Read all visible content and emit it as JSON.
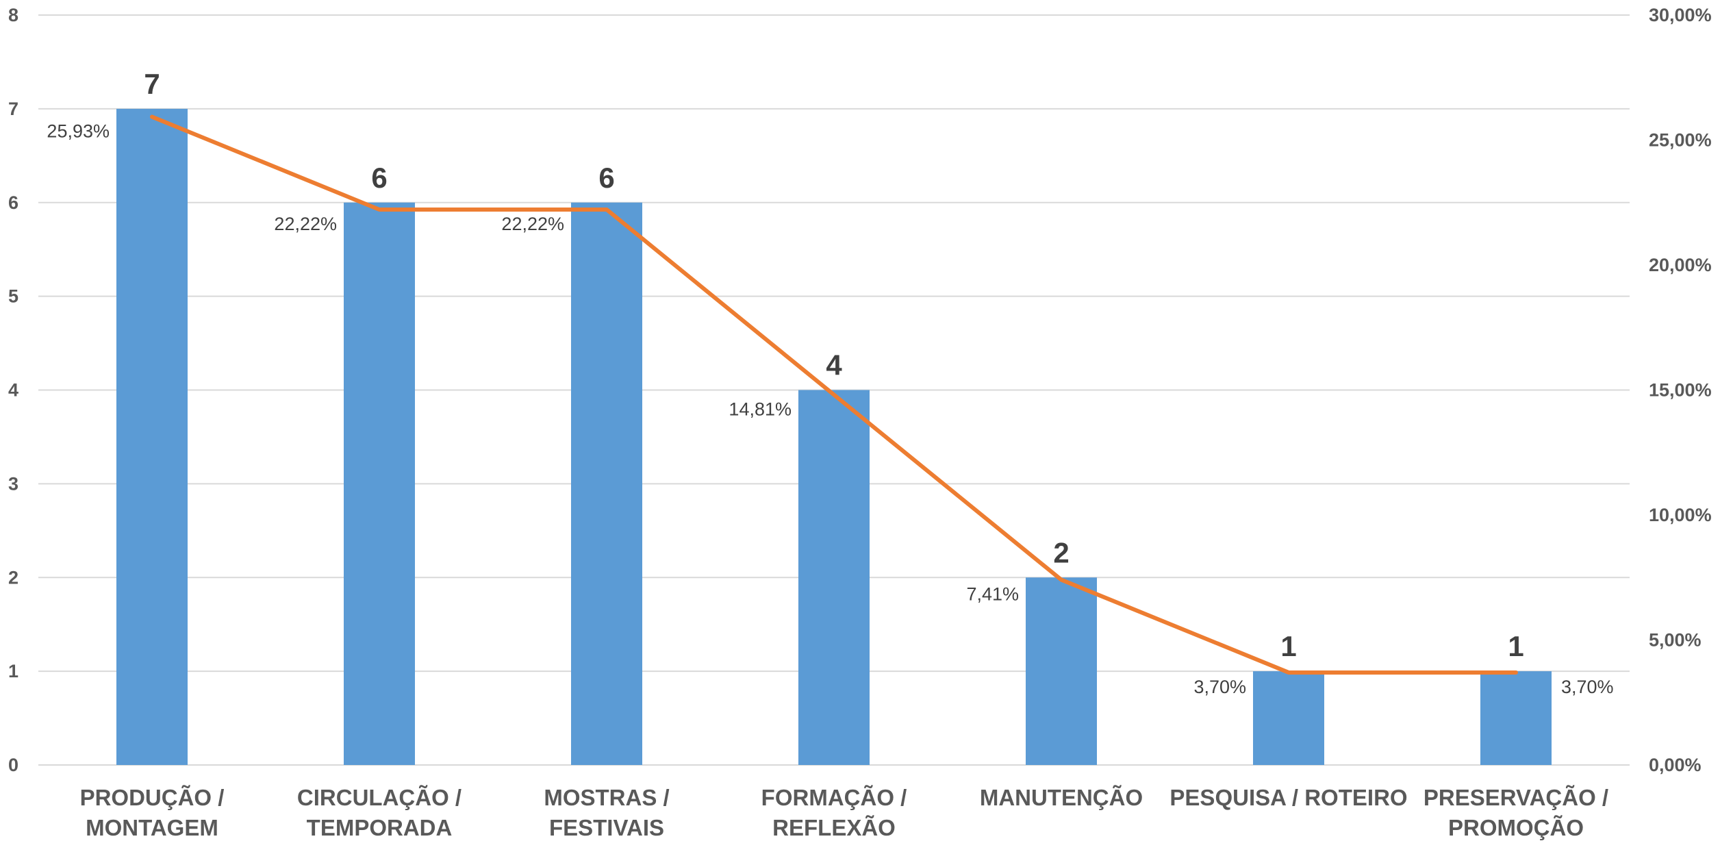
{
  "chart_data": {
    "type": "bar",
    "title": "",
    "xlabel": "",
    "ylabel": "",
    "categories": [
      [
        "PRODUÇÃO /",
        "MONTAGEM"
      ],
      [
        "CIRCULAÇÃO /",
        "TEMPORADA"
      ],
      [
        "MOSTRAS /",
        "FESTIVAIS"
      ],
      [
        "FORMAÇÃO /",
        "REFLEXÃO"
      ],
      [
        "MANUTENÇÃO"
      ],
      [
        "PESQUISA / ROTEIRO"
      ],
      [
        "PRESERVAÇÃO /",
        "PROMOÇÃO"
      ]
    ],
    "series": [
      {
        "type": "bar",
        "axis": "left",
        "color": "#5b9bd5",
        "values": [
          7,
          6,
          6,
          4,
          2,
          1,
          1
        ],
        "labels": [
          "7",
          "6",
          "6",
          "4",
          "2",
          "1",
          "1"
        ]
      },
      {
        "type": "line",
        "axis": "right",
        "color": "#ed7d31",
        "values": [
          25.93,
          22.22,
          22.22,
          14.81,
          7.41,
          3.7,
          3.7
        ],
        "labels": [
          "25,93%",
          "22,22%",
          "22,22%",
          "14,81%",
          "7,41%",
          "3,70%",
          "3,70%"
        ]
      }
    ],
    "ylim": [
      0,
      8
    ],
    "y_ticks": [
      "0",
      "1",
      "2",
      "3",
      "4",
      "5",
      "6",
      "7",
      "8"
    ],
    "y2lim": [
      0,
      30
    ],
    "y2_ticks": [
      "0,00%",
      "5,00%",
      "10,00%",
      "15,00%",
      "20,00%",
      "25,00%",
      "30,00%"
    ],
    "grid": true,
    "legend": "none"
  }
}
